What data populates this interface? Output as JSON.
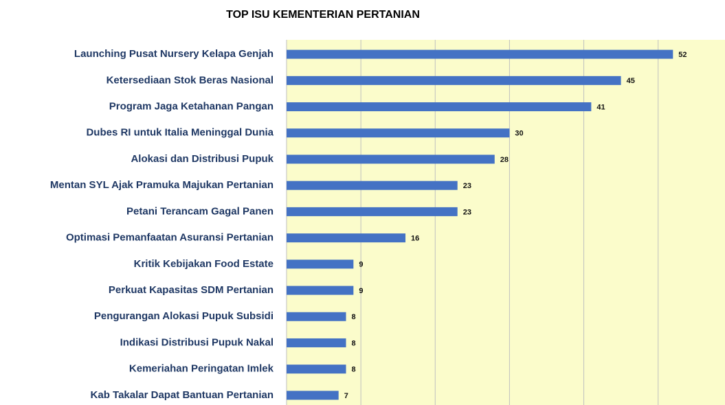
{
  "chart_data": {
    "type": "barh",
    "title": "TOP ISU KEMENTERIAN PERTANIAN",
    "categories": [
      "Launching Pusat Nursery Kelapa Genjah",
      "Ketersediaan Stok Beras Nasional",
      "Program Jaga Ketahanan Pangan",
      "Dubes RI untuk Italia Meninggal Dunia",
      "Alokasi dan Distribusi Pupuk",
      "Mentan SYL Ajak Pramuka Majukan Pertanian",
      "Petani Terancam Gagal Panen",
      "Optimasi Pemanfaatan Asuransi Pertanian",
      "Kritik Kebijakan Food Estate",
      "Perkuat Kapasitas SDM Pertanian",
      "Pengurangan Alokasi Pupuk Subsidi",
      "Indikasi Distribusi Pupuk Nakal",
      "Kemeriahan Peringatan Imlek",
      "Kab Takalar Dapat Bantuan Pertanian"
    ],
    "values": [
      52,
      45,
      41,
      30,
      28,
      23,
      23,
      16,
      9,
      9,
      8,
      8,
      8,
      7
    ],
    "color": "#4472c4",
    "xlim": [
      0,
      59
    ],
    "xticks": [
      0,
      10,
      20,
      30,
      40,
      50
    ],
    "grid": true
  }
}
